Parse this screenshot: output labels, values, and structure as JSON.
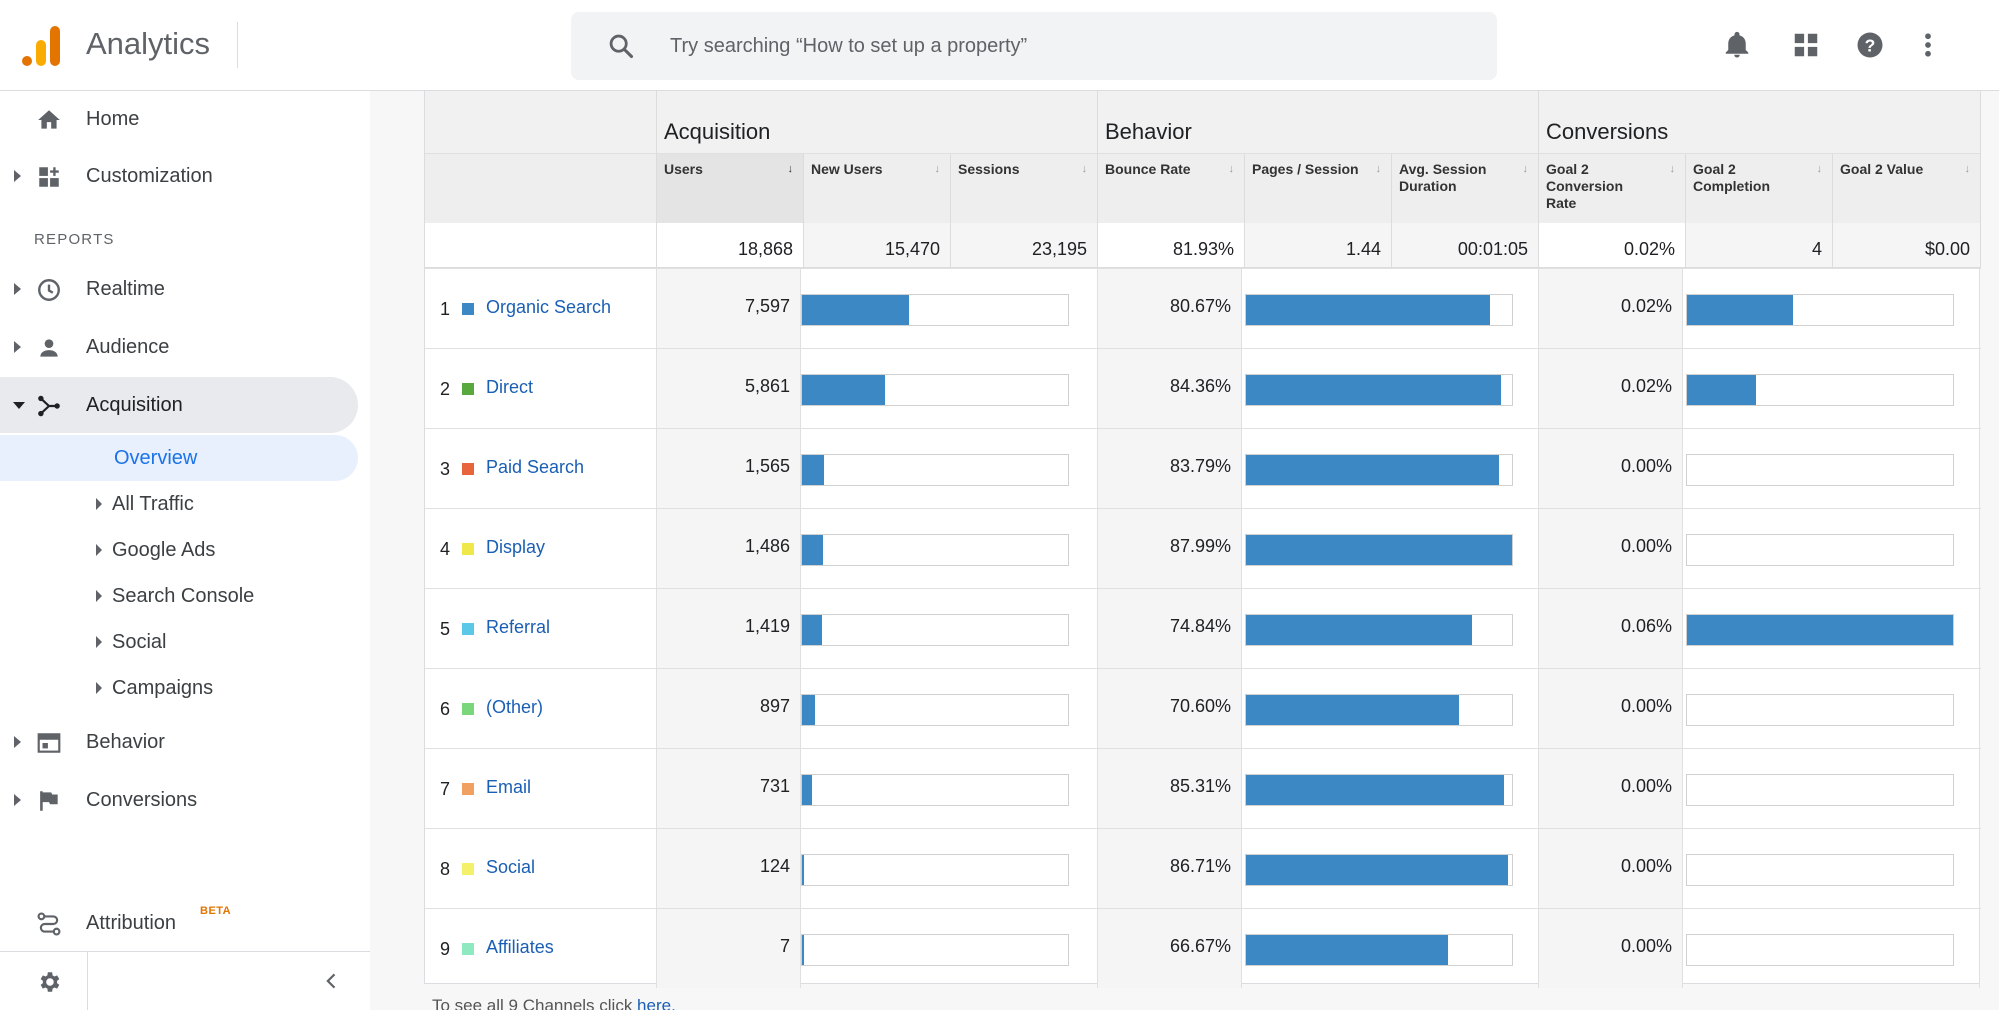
{
  "header": {
    "app_title": "Analytics",
    "search_placeholder": "Try searching “How to set up a property”",
    "icons": [
      "bell-icon",
      "apps-grid-icon",
      "help-icon",
      "more-vert-icon"
    ]
  },
  "sidebar": {
    "reports_label": "REPORTS",
    "top_items": [
      {
        "label": "Home",
        "icon": "home-icon"
      },
      {
        "label": "Customization",
        "icon": "customization-icon"
      }
    ],
    "report_items": [
      {
        "label": "Realtime",
        "icon": "clock-icon"
      },
      {
        "label": "Audience",
        "icon": "person-icon"
      },
      {
        "label": "Acquisition",
        "icon": "acquisition-icon",
        "expanded": true
      }
    ],
    "acquisition_sub": [
      {
        "label": "Overview",
        "selected": true
      },
      {
        "label": "All Traffic"
      },
      {
        "label": "Google Ads"
      },
      {
        "label": "Search Console"
      },
      {
        "label": "Social"
      },
      {
        "label": "Campaigns"
      }
    ],
    "bottom_items": [
      {
        "label": "Behavior",
        "icon": "behavior-icon"
      },
      {
        "label": "Conversions",
        "icon": "flag-icon"
      }
    ],
    "attribution": {
      "label": "Attribution",
      "badge": "BETA"
    }
  },
  "table": {
    "groups": [
      "Acquisition",
      "Behavior",
      "Conversions"
    ],
    "columns": [
      {
        "label": "Users",
        "sorted": true
      },
      {
        "label": "New Users"
      },
      {
        "label": "Sessions"
      },
      {
        "label": "Bounce Rate"
      },
      {
        "label": "Pages / Session"
      },
      {
        "label": "Avg. Session Duration"
      },
      {
        "label": "Goal 2 Conversion Rate"
      },
      {
        "label": "Goal 2 Completion"
      },
      {
        "label": "Goal 2 Value"
      }
    ],
    "totals": [
      "18,868",
      "15,470",
      "23,195",
      "81.93%",
      "1.44",
      "00:01:05",
      "0.02%",
      "4",
      "$0.00"
    ],
    "rows": [
      {
        "rank": "1",
        "channel": "Organic Search",
        "color": "#3b88c4",
        "users": "7,597",
        "users_pct": 40.3,
        "bounce": "80.67%",
        "bounce_pct": 91.7,
        "conv": "0.02%",
        "conv_pct": 40
      },
      {
        "rank": "2",
        "channel": "Direct",
        "color": "#58a83d",
        "users": "5,861",
        "users_pct": 31.1,
        "bounce": "84.36%",
        "bounce_pct": 95.9,
        "conv": "0.02%",
        "conv_pct": 26
      },
      {
        "rank": "3",
        "channel": "Paid Search",
        "color": "#e8643c",
        "users": "1,565",
        "users_pct": 8.3,
        "bounce": "83.79%",
        "bounce_pct": 95.2,
        "conv": "0.00%",
        "conv_pct": 0
      },
      {
        "rank": "4",
        "channel": "Display",
        "color": "#f0e84a",
        "users": "1,486",
        "users_pct": 7.9,
        "bounce": "87.99%",
        "bounce_pct": 100,
        "conv": "0.00%",
        "conv_pct": 0
      },
      {
        "rank": "5",
        "channel": "Referral",
        "color": "#5bc8e8",
        "users": "1,419",
        "users_pct": 7.5,
        "bounce": "74.84%",
        "bounce_pct": 85.1,
        "conv": "0.06%",
        "conv_pct": 100
      },
      {
        "rank": "6",
        "channel": "(Other)",
        "color": "#7ad67a",
        "users": "897",
        "users_pct": 4.8,
        "bounce": "70.60%",
        "bounce_pct": 80.2,
        "conv": "0.00%",
        "conv_pct": 0
      },
      {
        "rank": "7",
        "channel": "Email",
        "color": "#f0a060",
        "users": "731",
        "users_pct": 3.9,
        "bounce": "85.31%",
        "bounce_pct": 97.0,
        "conv": "0.00%",
        "conv_pct": 0
      },
      {
        "rank": "8",
        "channel": "Social",
        "color": "#f5f06a",
        "users": "124",
        "users_pct": 0.7,
        "bounce": "86.71%",
        "bounce_pct": 98.5,
        "conv": "0.00%",
        "conv_pct": 0
      },
      {
        "rank": "9",
        "channel": "Affiliates",
        "color": "#8ee8c0",
        "users": "7",
        "users_pct": 0.1,
        "bounce": "66.67%",
        "bounce_pct": 75.8,
        "conv": "0.00%",
        "conv_pct": 0
      }
    ],
    "footnote_text": "To see all 9 Channels click ",
    "footnote_link": "here."
  }
}
